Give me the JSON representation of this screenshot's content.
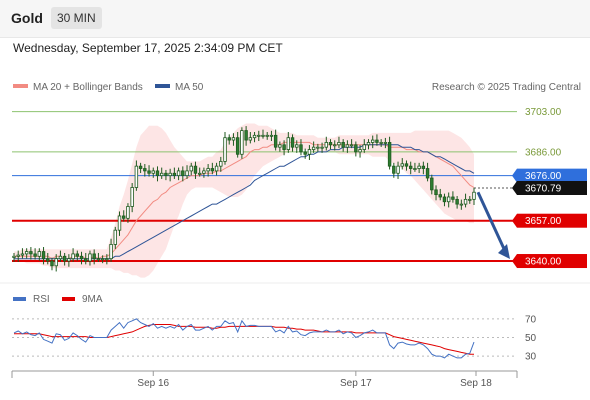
{
  "header": {
    "title": "Gold",
    "timeframe": "30 MIN"
  },
  "datetime": "Wednesday, September 17, 2025 2:34:09 PM CET",
  "legend": {
    "bb": {
      "label": "MA 20 + Bollinger Bands",
      "color": "#f28b82"
    },
    "ma50": {
      "label": "MA 50",
      "color": "#2f5597"
    },
    "credit": "Research © 2025 Trading Central"
  },
  "rsi_legend": {
    "rsi": {
      "label": "RSI",
      "color": "#4472c4"
    },
    "ma9": {
      "label": "9MA",
      "color": "#e00000"
    }
  },
  "chart_data": [
    {
      "type": "candlestick",
      "series_names": [
        "MA 20 + Bollinger Bands",
        "MA 50"
      ],
      "x_ticks": [
        "Sep 16",
        "Sep 17",
        "Sep 18"
      ],
      "ylim": [
        3632,
        3710
      ],
      "levels": [
        {
          "value": 3703.0,
          "label": "3703.00",
          "style": "green-line"
        },
        {
          "value": 3686.0,
          "label": "3686.00",
          "style": "green-line"
        },
        {
          "value": 3676.0,
          "label": "3676.00",
          "style": "blue-line"
        },
        {
          "value": 3657.0,
          "label": "3657.00",
          "style": "red-line"
        },
        {
          "value": 3640.0,
          "label": "3640.00",
          "style": "red-line"
        }
      ],
      "current_price": {
        "value": 3670.79,
        "label": "3670.79"
      },
      "close": [
        3642,
        3642.5,
        3643,
        3644,
        3643,
        3642,
        3644,
        3641,
        3640,
        3638,
        3641,
        3642,
        3640,
        3641,
        3643,
        3642,
        3641,
        3640,
        3643,
        3641,
        3641,
        3641,
        3641,
        3647,
        3653,
        3659,
        3658,
        3663,
        3671,
        3680,
        3679,
        3678,
        3677,
        3678,
        3676,
        3677,
        3676,
        3677,
        3676,
        3678,
        3676,
        3678,
        3680,
        3677,
        3677,
        3678,
        3679,
        3678,
        3680,
        3682,
        3692,
        3691,
        3692,
        3685,
        3695,
        3691,
        3692,
        3693,
        3693,
        3693,
        3693,
        3693,
        3688,
        3689,
        3687,
        3692,
        3688,
        3689,
        3686,
        3685,
        3687,
        3688,
        3688,
        3688,
        3690,
        3689,
        3689,
        3690,
        3688,
        3689,
        3689,
        3686,
        3687,
        3689,
        3690,
        3691,
        3690,
        3690,
        3690,
        3680,
        3677,
        3680,
        3681,
        3680,
        3679,
        3679,
        3680,
        3679,
        3675,
        3670,
        3668,
        3667,
        3665,
        3667,
        3666,
        3664,
        3664,
        3666,
        3666,
        3669
      ],
      "ma20": [
        3642,
        3642,
        3642,
        3642,
        3642,
        3642,
        3642,
        3642,
        3642,
        3641,
        3642,
        3642,
        3641,
        3641,
        3642,
        3642,
        3642,
        3641,
        3641,
        3642,
        3641,
        3642,
        3642,
        3643,
        3645,
        3647,
        3649,
        3651,
        3654,
        3657,
        3659,
        3661,
        3663,
        3665,
        3666,
        3668,
        3669,
        3671,
        3672,
        3673,
        3674,
        3675,
        3676,
        3676,
        3676,
        3677,
        3677,
        3677,
        3678,
        3678,
        3679,
        3680,
        3681,
        3682,
        3683,
        3684,
        3686,
        3687,
        3687,
        3688,
        3688,
        3689,
        3689,
        3689,
        3690,
        3690,
        3690,
        3690,
        3690,
        3690,
        3690,
        3689,
        3689,
        3689,
        3689,
        3689,
        3689,
        3689,
        3689,
        3689,
        3689,
        3689,
        3689,
        3689,
        3689,
        3689,
        3689,
        3689,
        3689,
        3688,
        3688,
        3688,
        3688,
        3687,
        3687,
        3687,
        3686,
        3686,
        3686,
        3685,
        3684,
        3683,
        3682,
        3681,
        3680,
        3678,
        3676,
        3674,
        3672,
        3671
      ],
      "bb_upper": [
        3644,
        3644,
        3645,
        3645,
        3645,
        3645,
        3645,
        3645,
        3645,
        3645,
        3645,
        3645,
        3645,
        3645,
        3645,
        3645,
        3645,
        3645,
        3645,
        3645,
        3645,
        3645,
        3645,
        3650,
        3656,
        3663,
        3668,
        3674,
        3681,
        3688,
        3693,
        3695,
        3697,
        3697,
        3697,
        3696,
        3694,
        3691,
        3688,
        3686,
        3684,
        3682,
        3682,
        3682,
        3682,
        3683,
        3684,
        3684,
        3686,
        3687,
        3690,
        3692,
        3694,
        3696,
        3697,
        3698,
        3698,
        3698,
        3697,
        3697,
        3697,
        3696,
        3695,
        3694,
        3694,
        3694,
        3694,
        3693,
        3693,
        3693,
        3693,
        3693,
        3692,
        3692,
        3692,
        3692,
        3692,
        3693,
        3693,
        3693,
        3693,
        3693,
        3693,
        3693,
        3693,
        3694,
        3694,
        3694,
        3694,
        3694,
        3694,
        3694,
        3694,
        3694,
        3694,
        3695,
        3695,
        3695,
        3695,
        3695,
        3695,
        3695,
        3695,
        3695,
        3694,
        3693,
        3692,
        3690,
        3688,
        3685
      ],
      "bb_lower": [
        3640,
        3640,
        3640,
        3639,
        3639,
        3639,
        3639,
        3638,
        3638,
        3637,
        3637,
        3637,
        3637,
        3637,
        3637,
        3637,
        3637,
        3637,
        3637,
        3637,
        3637,
        3637,
        3637,
        3637,
        3636,
        3636,
        3635,
        3635,
        3634,
        3634,
        3633,
        3633,
        3634,
        3636,
        3639,
        3642,
        3645,
        3650,
        3655,
        3659,
        3664,
        3668,
        3670,
        3671,
        3671,
        3671,
        3671,
        3671,
        3670,
        3669,
        3668,
        3667,
        3667,
        3667,
        3668,
        3670,
        3673,
        3676,
        3678,
        3680,
        3681,
        3682,
        3683,
        3684,
        3685,
        3686,
        3686,
        3687,
        3687,
        3687,
        3687,
        3686,
        3686,
        3686,
        3686,
        3686,
        3686,
        3685,
        3685,
        3685,
        3685,
        3685,
        3685,
        3685,
        3685,
        3684,
        3684,
        3684,
        3684,
        3682,
        3681,
        3680,
        3679,
        3677,
        3676,
        3674,
        3672,
        3670,
        3668,
        3666,
        3664,
        3662,
        3660,
        3659,
        3658,
        3657,
        3657,
        3657,
        3656,
        3656
      ],
      "ma50": [
        3641,
        3641,
        3641,
        3641,
        3641,
        3641,
        3641,
        3641,
        3641,
        3641,
        3641,
        3641,
        3641,
        3641,
        3641,
        3641,
        3641,
        3641,
        3641,
        3641,
        3641,
        3641,
        3641,
        3641,
        3642,
        3642,
        3643,
        3644,
        3645,
        3646,
        3647,
        3648,
        3649,
        3650,
        3651,
        3652,
        3653,
        3654,
        3655,
        3656,
        3657,
        3658,
        3659,
        3660,
        3661,
        3662,
        3663,
        3664,
        3664,
        3665,
        3666,
        3667,
        3668,
        3669,
        3670,
        3671,
        3672,
        3674,
        3675,
        3676,
        3677,
        3678,
        3679,
        3680,
        3680,
        3681,
        3682,
        3683,
        3684,
        3684,
        3685,
        3685,
        3686,
        3686,
        3686,
        3687,
        3687,
        3687,
        3688,
        3688,
        3688,
        3688,
        3688,
        3689,
        3689,
        3689,
        3689,
        3689,
        3689,
        3689,
        3689,
        3689,
        3688,
        3688,
        3688,
        3687,
        3687,
        3686,
        3686,
        3685,
        3684,
        3684,
        3683,
        3682,
        3681,
        3680,
        3679,
        3678,
        3678,
        3677
      ]
    },
    {
      "type": "line",
      "series_names": [
        "RSI",
        "9MA"
      ],
      "ylim": [
        15,
        85
      ],
      "y_ticks": [
        70,
        50,
        30
      ],
      "rsi": [
        55,
        57,
        54,
        56,
        53,
        52,
        55,
        48,
        46,
        44,
        54,
        53,
        47,
        49,
        55,
        52,
        48,
        45,
        52,
        50,
        50,
        50,
        50,
        58,
        62,
        66,
        60,
        66,
        68,
        70,
        66,
        64,
        62,
        65,
        60,
        62,
        60,
        62,
        60,
        64,
        58,
        62,
        64,
        58,
        58,
        60,
        62,
        58,
        62,
        62,
        68,
        65,
        66,
        56,
        68,
        62,
        63,
        63,
        62,
        62,
        62,
        62,
        56,
        58,
        55,
        62,
        56,
        57,
        53,
        52,
        55,
        56,
        56,
        56,
        58,
        56,
        56,
        58,
        54,
        56,
        55,
        50,
        52,
        55,
        56,
        58,
        55,
        55,
        55,
        42,
        38,
        44,
        45,
        43,
        42,
        42,
        44,
        42,
        38,
        32,
        30,
        30,
        28,
        32,
        30,
        28,
        28,
        32,
        33,
        45
      ],
      "ma9": [
        54,
        54,
        54,
        54,
        54,
        54,
        54,
        53,
        52,
        51,
        51,
        51,
        51,
        51,
        51,
        51,
        51,
        51,
        50,
        50,
        50,
        50,
        50,
        51,
        52,
        53,
        54,
        55,
        56,
        58,
        60,
        62,
        63,
        64,
        64,
        64,
        64,
        64,
        63,
        62,
        62,
        62,
        62,
        61,
        61,
        61,
        61,
        60,
        60,
        61,
        61,
        62,
        62,
        62,
        62,
        62,
        62,
        62,
        62,
        62,
        62,
        62,
        61,
        61,
        61,
        60,
        60,
        59,
        59,
        58,
        58,
        58,
        57,
        56,
        56,
        56,
        56,
        56,
        56,
        56,
        56,
        55,
        55,
        55,
        55,
        55,
        55,
        55,
        55,
        53,
        51,
        50,
        49,
        48,
        47,
        46,
        45,
        44,
        43,
        42,
        41,
        40,
        38,
        37,
        36,
        35,
        34,
        33,
        32,
        32
      ]
    }
  ]
}
